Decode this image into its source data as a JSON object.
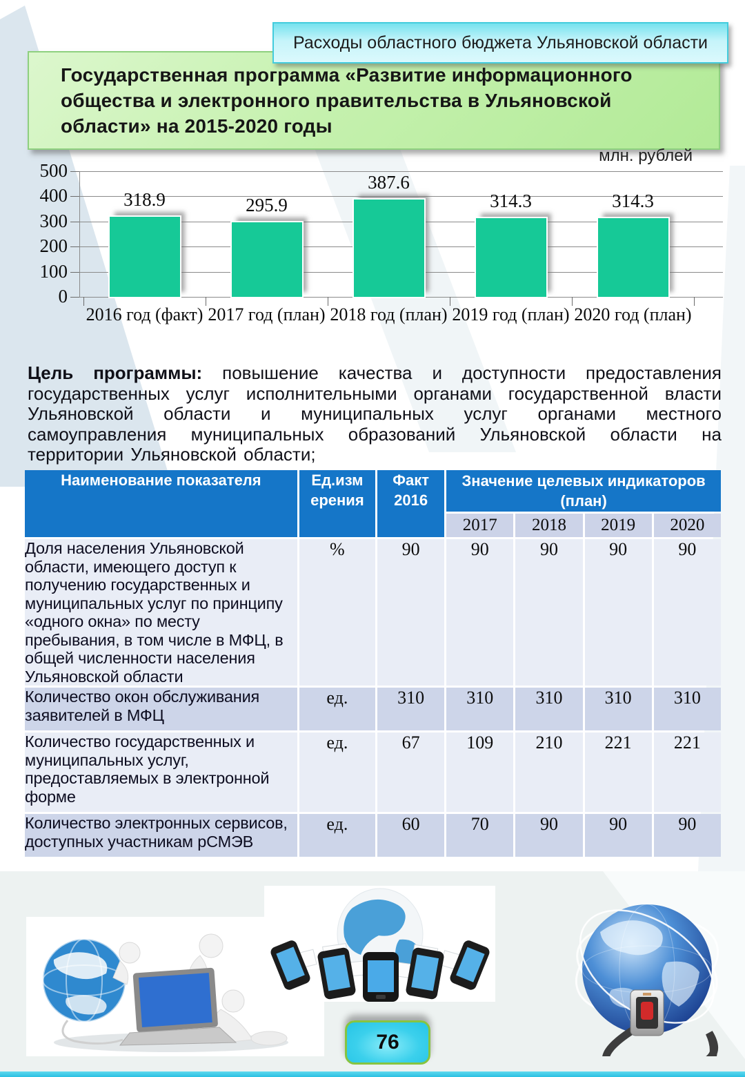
{
  "banner": {
    "text": "Расходы областного бюджета Ульяновской области"
  },
  "title": {
    "text": "Государственная программа «Развитие информационного общества и электронного правительства в Ульяновской области» на 2015-2020 годы"
  },
  "chart_data": {
    "type": "bar",
    "unit_label": "млн. рублей",
    "categories": [
      "2016 год (факт)",
      "2017 год (план)",
      "2018 год (план)",
      "2019 год (план)",
      "2020 год (план)"
    ],
    "values": [
      318.9,
      295.9,
      387.6,
      314.3,
      314.3
    ],
    "ylim": [
      0,
      500
    ],
    "yticks": [
      0,
      100,
      200,
      300,
      400,
      500
    ],
    "bar_color": "#16c997",
    "grid": true,
    "legend": "none"
  },
  "goal": {
    "label": "Цель программы:",
    "text": " повышение качества и доступности предоставления государственных услуг исполнительными органами государственной власти Ульяновской области и муниципальных услуг органами местного самоуправления муниципальных образований Ульяновской области на территории Ульяновской области;"
  },
  "table": {
    "header": {
      "col_name": "Наименование показателя",
      "col_unit": "Ед.изм\nерения",
      "col_fact": "Факт\n2016",
      "col_plan_span": "Значение целевых индикаторов\n(план)",
      "years": [
        "2017",
        "2018",
        "2019",
        "2020"
      ]
    },
    "rows": [
      {
        "name": "Доля населения Ульяновской области, имеющего доступ к получению государственных и муниципальных услуг по принципу «одного окна» по месту пребывания, в том числе в МФЦ, в общей численности населения Ульяновской области",
        "unit": "%",
        "fact": "90",
        "plan": [
          "90",
          "90",
          "90",
          "90"
        ]
      },
      {
        "name": "Количество окон обслуживания заявителей в МФЦ",
        "unit": "ед.",
        "fact": "310",
        "plan": [
          "310",
          "310",
          "310",
          "310"
        ]
      },
      {
        "name": "Количество государственных и муниципальных услуг, предоставляемых в электронной форме",
        "unit": "ед.",
        "fact": "67",
        "plan": [
          "109",
          "210",
          "221",
          "221"
        ]
      },
      {
        "name": "Количество электронных сервисов, доступных участникам рСМЭВ",
        "unit": "ед.",
        "fact": "60",
        "plan": [
          "70",
          "90",
          "90",
          "90"
        ]
      }
    ]
  },
  "illustrations": [
    {
      "name": "people-globe-laptop-clipart"
    },
    {
      "name": "globe-smartphones-documents-clipart"
    },
    {
      "name": "network-globe-power-plug-clipart"
    }
  ],
  "footer": {
    "page_number": "76"
  },
  "colors": {
    "table_header_blue": "#1576c8",
    "table_year_row": "#ccd3e8",
    "row_light": "#e9edf6",
    "row_dark": "#cdd5e9",
    "bar_teal": "#16c997",
    "banner_cyan_border": "#43ccdd",
    "title_green_border": "#8ed07f",
    "badge_cyan": "#3bd0ec",
    "badge_green_border": "#86c440"
  }
}
